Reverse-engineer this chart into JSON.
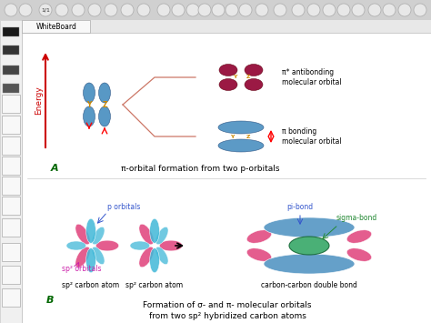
{
  "bg_color": "#e8e8e8",
  "whiteboard_bg": "#ffffff",
  "toolbar_left_bg": "#f0f0f0",
  "toolbar_top_bg": "#d8d8d8",
  "title_text": "WhiteBoard",
  "section_A_label": "A",
  "section_A_text": "π-orbital formation from two p-orbitals",
  "section_B_label": "B",
  "section_B_line1": "Formation of σ- and π- molecular orbitals",
  "section_B_line2": "from two sp² hybridized carbon atoms",
  "antibonding_label": "π* antibonding\nmolecular orbital",
  "bonding_label": "π bonding\nmolecular orbital",
  "energy_label": "Energy",
  "p_orbitals_label": "p orbitals",
  "sp2_orbitals_label": "sp² orbitals",
  "sp2_atom1_label": "sp² carbon atom",
  "sp2_atom2_label": "sp² carbon atom",
  "double_bond_label": "carbon-carbon double bond",
  "pi_bond_label": "pi-bond",
  "sigma_bond_label": "sigma-bond",
  "blue_orbital": "#4a8fc0",
  "blue_orbital_dark": "#2a6090",
  "pink_orbital": "#e0407a",
  "pink_orbital_dark": "#b02050",
  "dark_red_orbital": "#900030",
  "green_orbital": "#2d8a4e",
  "cyan_orbital": "#40b8d8",
  "energy_color": "#cc0000",
  "label_blue": "#3355cc",
  "label_pink": "#cc22aa",
  "label_green": "#228833",
  "fork_color": "#cc7766",
  "YZ_color": "#cc8800"
}
